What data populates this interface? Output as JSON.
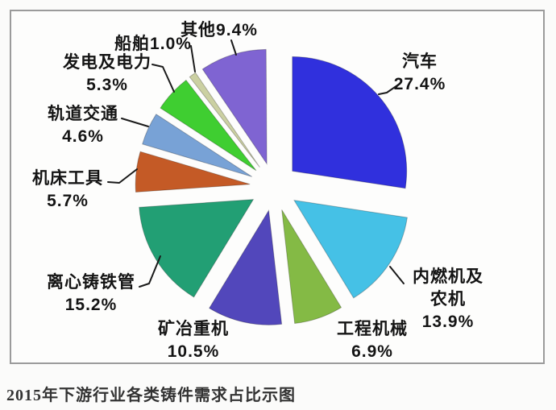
{
  "page": {
    "caption": "2015年下游行业各类铸件需求占比示图"
  },
  "chart_data": {
    "type": "pie",
    "title": "2015年下游行业各类铸件需求占比示图",
    "unit": "%",
    "start_angle_deg": 0,
    "direction": "clockwise",
    "exploded": true,
    "slices": [
      {
        "id": "automobile",
        "label": "汽车",
        "value": 27.4,
        "display": "27.4%",
        "color": "#3030dd",
        "label_lines": [
          "汽车",
          "27.4%"
        ]
      },
      {
        "id": "ice-agri-machinery",
        "label": "内燃机及农机",
        "value": 13.9,
        "display": "13.9%",
        "color": "#45c1e6",
        "label_lines": [
          "内燃机及",
          "农机",
          "13.9%"
        ]
      },
      {
        "id": "construction-machinery",
        "label": "工程机械",
        "value": 6.9,
        "display": "6.9%",
        "color": "#84ba45",
        "label_lines": [
          "工程机械",
          "6.9%"
        ]
      },
      {
        "id": "mining-metallurgy",
        "label": "矿冶重机",
        "value": 10.5,
        "display": "10.5%",
        "color": "#5247bb",
        "label_lines": [
          "矿冶重机",
          "10.5%"
        ]
      },
      {
        "id": "cast-iron-pipe",
        "label": "离心铸铁管",
        "value": 15.2,
        "display": "15.2%",
        "color": "#229f74",
        "label_lines": [
          "离心铸铁管",
          "15.2%"
        ]
      },
      {
        "id": "machine-tools",
        "label": "机床工具",
        "value": 5.7,
        "display": "5.7%",
        "color": "#c45a26",
        "label_lines": [
          "机床工具",
          "5.7%"
        ]
      },
      {
        "id": "rail-transit",
        "label": "轨道交通",
        "value": 4.6,
        "display": "4.6%",
        "color": "#78a2d6",
        "label_lines": [
          "轨道交通",
          "4.6%"
        ]
      },
      {
        "id": "power-generation",
        "label": "发电及电力",
        "value": 5.3,
        "display": "5.3%",
        "color": "#3fce31",
        "label_lines": [
          "发电及电力",
          "5.3%"
        ]
      },
      {
        "id": "ships",
        "label": "船舶",
        "value": 1.0,
        "display": "1.0%",
        "color": "#cbd0a2",
        "label_lines": [
          "船舶1.0%"
        ]
      },
      {
        "id": "others",
        "label": "其他",
        "value": 9.4,
        "display": "9.4%",
        "color": "#7f64d2",
        "label_lines": [
          "其他9.4%"
        ]
      }
    ]
  }
}
